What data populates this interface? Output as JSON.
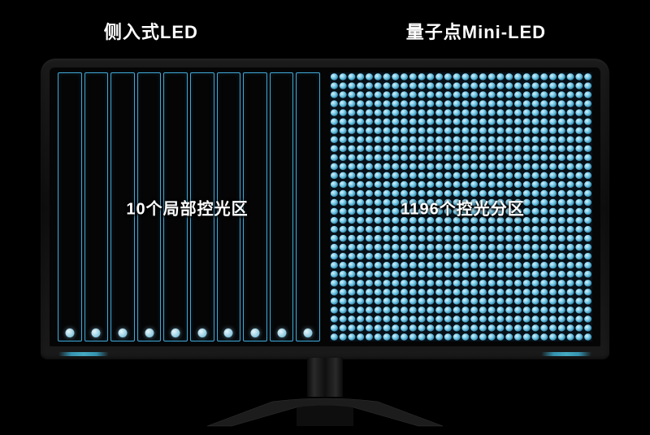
{
  "headers": {
    "left": "侧入式LED",
    "right": "量子点Mini-LED"
  },
  "left_panel": {
    "overlay_text": "10个局部控光区",
    "zone_count": 10,
    "zone_border_color": "#3fa8d8",
    "dot_color_inner": "#e8f6fb",
    "dot_color_outer": "#5aaed0"
  },
  "right_panel": {
    "overlay_text": "1196个控光分区",
    "grid_cols": 30,
    "grid_rows": 30,
    "dot_fill": "#6fc6e6",
    "dot_highlight": "#d8f2fa",
    "background": "#081018"
  },
  "styling": {
    "page_background": "#000000",
    "header_fontsize": 22,
    "header_color": "#ffffff",
    "overlay_fontsize": 20,
    "overlay_color": "#ffffff",
    "bezel_light_color": "#4dc4df",
    "monitor_width": 700,
    "monitor_screen_height": 370
  }
}
